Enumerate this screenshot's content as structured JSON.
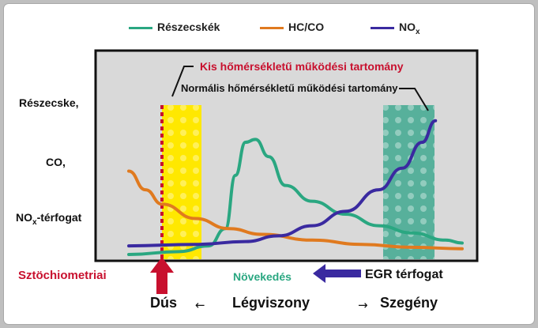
{
  "chart_data": {
    "type": "line",
    "legend": [
      {
        "name": "Részecskék",
        "color": "#2aa781"
      },
      {
        "name": "HC/CO",
        "color": "#e07a1f"
      },
      {
        "name": "NO",
        "sub": "x",
        "color": "#3a2aa0"
      }
    ],
    "y_labels": [
      "Részecske,",
      "CO,",
      "NO",
      "x",
      "-térfogat"
    ],
    "annotations": {
      "low_temp": "Kis hőmérsékletű működési tartomány",
      "normal_temp": "Normális hőmérsékletű működési tartomány"
    },
    "stoich_label": "Sztöchiometriai",
    "increase_label": "Növekedés",
    "egr_label": "EGR térfogat",
    "x_axis": {
      "rich": "Dús",
      "arrow_left": "←",
      "center": "Légviszony",
      "arrow_right": "→",
      "lean": "Szegény"
    },
    "xlim": [
      0,
      1
    ],
    "ylim": [
      0,
      1
    ],
    "series": [
      {
        "name": "Részecskék",
        "color": "#2aa781",
        "points": [
          [
            0.0,
            0.0
          ],
          [
            0.15,
            0.02
          ],
          [
            0.24,
            0.06
          ],
          [
            0.29,
            0.18
          ],
          [
            0.32,
            0.55
          ],
          [
            0.35,
            0.78
          ],
          [
            0.38,
            0.8
          ],
          [
            0.42,
            0.68
          ],
          [
            0.47,
            0.48
          ],
          [
            0.55,
            0.37
          ],
          [
            0.65,
            0.28
          ],
          [
            0.75,
            0.2
          ],
          [
            0.85,
            0.15
          ],
          [
            0.95,
            0.1
          ],
          [
            1.0,
            0.08
          ]
        ]
      },
      {
        "name": "HC/CO",
        "color": "#e07a1f",
        "points": [
          [
            0.0,
            0.58
          ],
          [
            0.05,
            0.45
          ],
          [
            0.1,
            0.35
          ],
          [
            0.2,
            0.25
          ],
          [
            0.3,
            0.18
          ],
          [
            0.4,
            0.14
          ],
          [
            0.55,
            0.1
          ],
          [
            0.7,
            0.07
          ],
          [
            0.85,
            0.05
          ],
          [
            1.0,
            0.04
          ]
        ]
      },
      {
        "name": "NO",
        "color": "#3a2aa0",
        "points": [
          [
            0.0,
            0.06
          ],
          [
            0.2,
            0.07
          ],
          [
            0.35,
            0.09
          ],
          [
            0.45,
            0.13
          ],
          [
            0.55,
            0.2
          ],
          [
            0.65,
            0.3
          ],
          [
            0.75,
            0.45
          ],
          [
            0.82,
            0.6
          ],
          [
            0.88,
            0.78
          ],
          [
            0.92,
            0.93
          ]
        ]
      }
    ]
  },
  "colors": {
    "yellow_band": "#ffe800",
    "teal_band": "#3fa88f",
    "stoich": "#c8102e",
    "arrow_blue": "#3a2aa0",
    "increase_green": "#2aa781"
  }
}
